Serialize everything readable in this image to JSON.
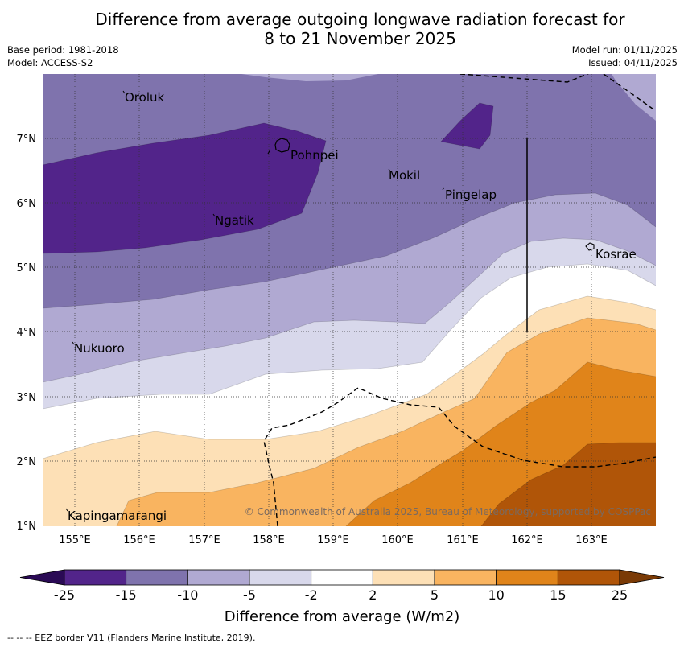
{
  "title": {
    "line1": "Difference from average outgoing longwave radiation forecast for",
    "line2": "8 to 21 November 2025"
  },
  "meta": {
    "base_period": "Base period: 1981-2018",
    "model": "Model: ACCESS-S2",
    "model_run": "Model run: 01/11/2025",
    "issued": "Issued: 04/11/2025"
  },
  "map": {
    "lon_labels": [
      "155°E",
      "156°E",
      "157°E",
      "158°E",
      "159°E",
      "160°E",
      "161°E",
      "162°E",
      "163°E"
    ],
    "lat_labels": [
      "7°N",
      "6°N",
      "5°N",
      "4°N",
      "3°N",
      "2°N",
      "1°N"
    ],
    "places": {
      "oroluk": "Oroluk",
      "pohnpei": "Pohnpei",
      "mokil": "Mokil",
      "pingelap": "Pingelap",
      "ngatik": "Ngatik",
      "kosrae": "Kosrae",
      "nukuoro": "Nukuoro",
      "kapingamarangi": "Kapingamarangi"
    },
    "copyright": "© Commonwealth of Australia 2025, Bureau of Meteorology, supported by COSPPac"
  },
  "colorbar": {
    "ticks": [
      "-25",
      "-15",
      "-10",
      "-5",
      "-2",
      "2",
      "5",
      "10",
      "15",
      "25"
    ],
    "colors": [
      "#2a0a55",
      "#52248a",
      "#7f73ad",
      "#b0a9d2",
      "#d8d8eb",
      "#ffffff",
      "#fde0b6",
      "#f9b460",
      "#e0841a",
      "#b05508",
      "#7a3a06"
    ],
    "label": "Difference from average (W/m2)"
  },
  "footer": {
    "eez": "--  --  -- EEZ border V11 (Flanders Marine Institute, 2019)."
  }
}
